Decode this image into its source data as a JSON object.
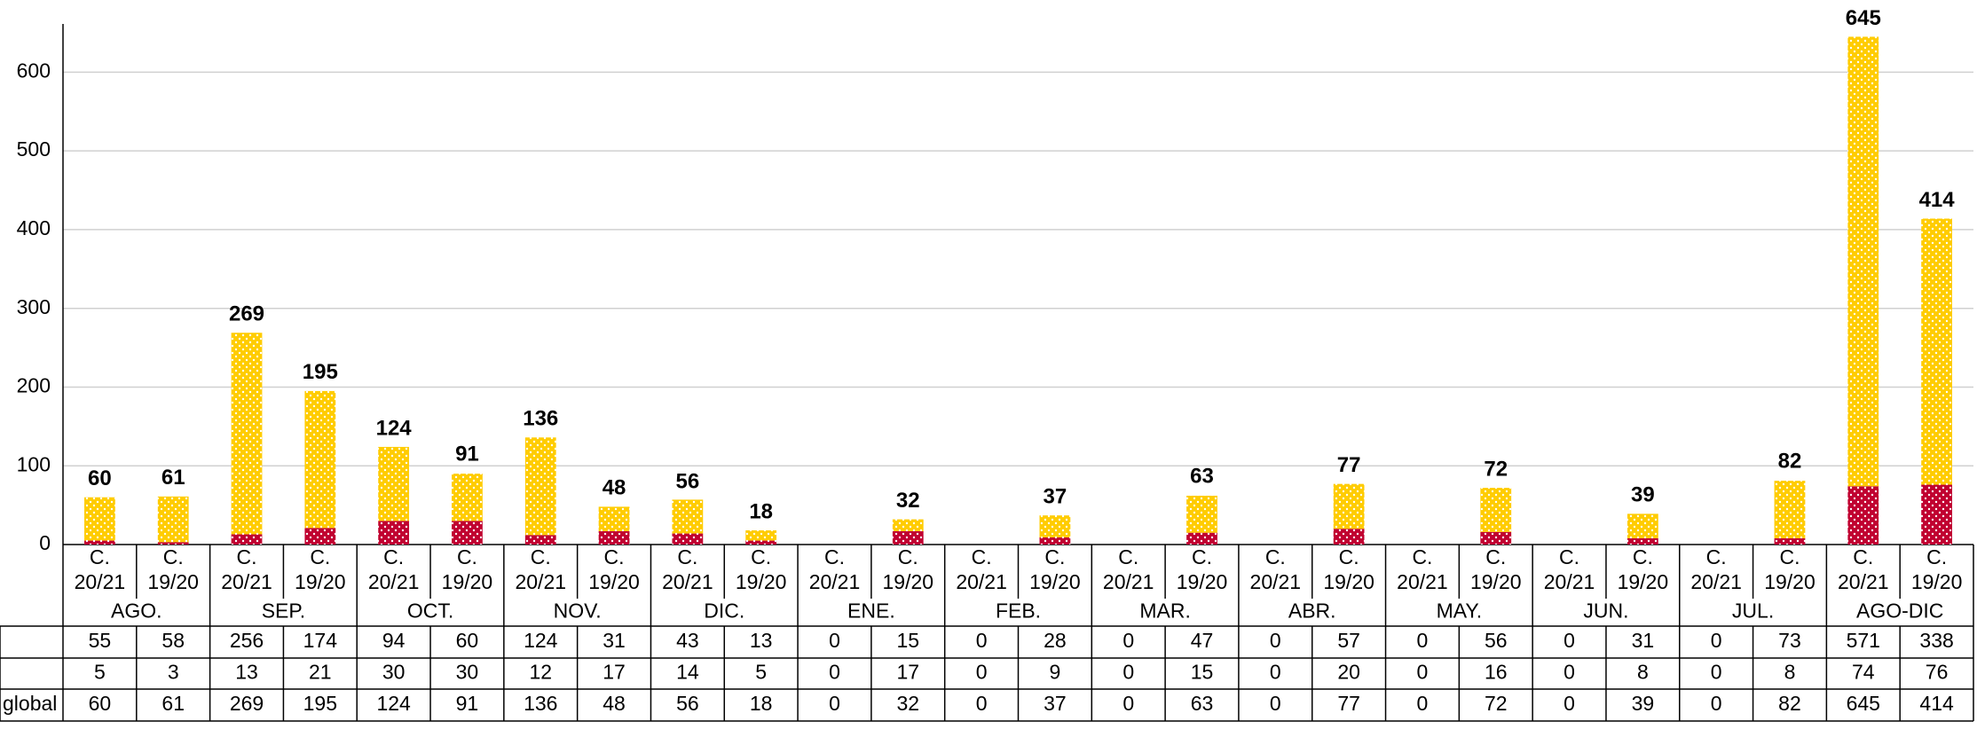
{
  "chart_data": {
    "type": "stacked_bar",
    "categories": [
      "C. 20/21",
      "C. 19/20",
      "C. 20/21",
      "C. 19/20",
      "C. 20/21",
      "C. 19/20",
      "C. 20/21",
      "C. 19/20",
      "C. 20/21",
      "C. 19/20",
      "C. 20/21",
      "C. 19/20",
      "C. 20/21",
      "C. 19/20",
      "C. 20/21",
      "C. 19/20",
      "C. 20/21",
      "C. 19/20",
      "C. 20/21",
      "C. 19/20",
      "C. 20/21",
      "C. 19/20",
      "C. 20/21",
      "C. 19/20",
      "C. 20/21",
      "C. 19/20"
    ],
    "groups": [
      "AGO.",
      "SEP.",
      "OCT.",
      "NOV.",
      "DIC.",
      "ENE.",
      "FEB.",
      "MAR.",
      "ABR.",
      "MAY.",
      "JUN.",
      "JUL.",
      "AGO-DIC"
    ],
    "series": [
      {
        "color": "#ffcc00",
        "values": [
          55,
          58,
          256,
          174,
          94,
          60,
          124,
          31,
          43,
          13,
          0,
          15,
          0,
          28,
          0,
          47,
          0,
          57,
          0,
          56,
          0,
          31,
          0,
          73,
          571,
          338
        ]
      },
      {
        "color": "#c00030",
        "values": [
          5,
          3,
          13,
          21,
          30,
          30,
          12,
          17,
          14,
          5,
          0,
          17,
          0,
          9,
          0,
          15,
          0,
          20,
          0,
          16,
          0,
          8,
          0,
          8,
          74,
          76
        ]
      }
    ],
    "totals": {
      "name": "global",
      "values": [
        60,
        61,
        269,
        195,
        124,
        91,
        136,
        48,
        56,
        18,
        0,
        32,
        0,
        37,
        0,
        63,
        0,
        77,
        0,
        72,
        0,
        39,
        0,
        82,
        645,
        414
      ]
    },
    "ylim": [
      0,
      650
    ],
    "yticks": [
      0,
      100,
      200,
      300,
      400,
      500,
      600
    ],
    "grid": true
  }
}
